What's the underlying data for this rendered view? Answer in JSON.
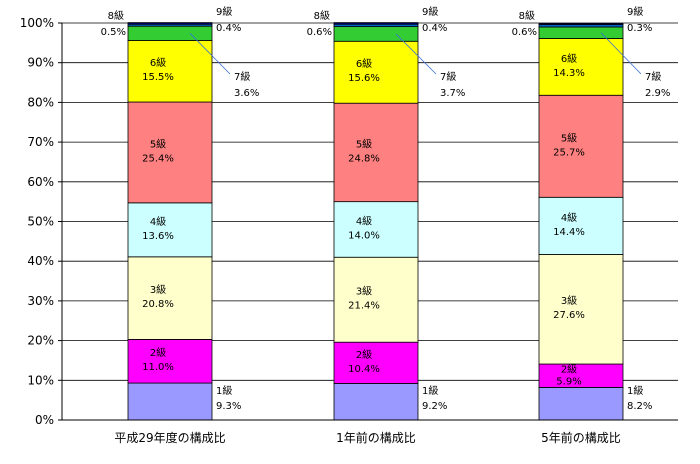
{
  "chart_data": {
    "type": "bar",
    "stacked": true,
    "grid": true,
    "ylim": [
      0,
      100
    ],
    "yticks": [
      "0%",
      "10%",
      "20%",
      "30%",
      "40%",
      "50%",
      "60%",
      "70%",
      "80%",
      "90%",
      "100%"
    ],
    "categories": [
      "平成29年度の構成比",
      "1年前の構成比",
      "5年前の構成比"
    ],
    "series": [
      {
        "name": "1級",
        "color": "#9999ff",
        "values": [
          9.3,
          9.2,
          8.2
        ],
        "labels": [
          "9.3%",
          "9.2%",
          "8.2%"
        ]
      },
      {
        "name": "2級",
        "color": "#ff00ff",
        "values": [
          11.0,
          10.4,
          5.9
        ],
        "labels": [
          "11.0%",
          "10.4%",
          "5.9%"
        ]
      },
      {
        "name": "3級",
        "color": "#ffffcc",
        "values": [
          20.8,
          21.4,
          27.6
        ],
        "labels": [
          "20.8%",
          "21.4%",
          "27.6%"
        ]
      },
      {
        "name": "4級",
        "color": "#ccffff",
        "values": [
          13.6,
          14.0,
          14.4
        ],
        "labels": [
          "13.6%",
          "14.0%",
          "14.4%"
        ]
      },
      {
        "name": "5級",
        "color": "#ff8080",
        "values": [
          25.4,
          24.8,
          25.7
        ],
        "labels": [
          "25.4%",
          "24.8%",
          "25.7%"
        ]
      },
      {
        "name": "6級",
        "color": "#ffff00",
        "values": [
          15.5,
          15.6,
          14.3
        ],
        "labels": [
          "15.5%",
          "15.6%",
          "14.3%"
        ]
      },
      {
        "name": "7級",
        "color": "#33cc33",
        "values": [
          3.6,
          3.7,
          2.9
        ],
        "labels": [
          "3.6%",
          "3.7%",
          "2.9%"
        ]
      },
      {
        "name": "8級",
        "color": "#0066cc",
        "values": [
          0.5,
          0.6,
          0.6
        ],
        "labels": [
          "0.5%",
          "0.6%",
          "0.6%"
        ]
      },
      {
        "name": "9級",
        "color": "#000080",
        "values": [
          0.4,
          0.4,
          0.3
        ],
        "labels": [
          "0.4%",
          "0.4%",
          "0.3%"
        ]
      }
    ]
  }
}
